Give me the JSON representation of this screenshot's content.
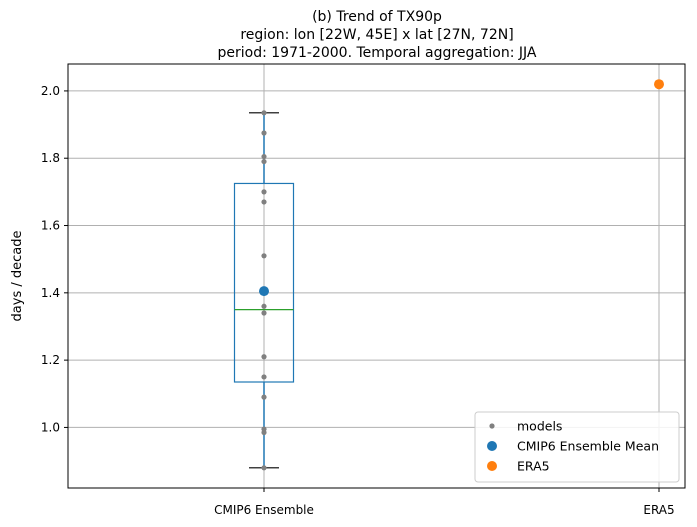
{
  "chart_data": {
    "type": "box",
    "title_lines": [
      "(b) Trend of TX90p",
      "region: lon [22W, 45E] x lat [27N, 72N]",
      "period: 1971-2000. Temporal aggregation: JJA"
    ],
    "xlabel": "",
    "ylabel": "days / decade",
    "categories": [
      "CMIP6 Ensemble",
      "ERA5"
    ],
    "ylim": [
      0.82,
      2.08
    ],
    "yticks": [
      1.0,
      1.2,
      1.4,
      1.6,
      1.8,
      2.0
    ],
    "ytick_labels": [
      "1.0",
      "1.2",
      "1.4",
      "1.6",
      "1.8",
      "2.0"
    ],
    "grid": true,
    "box": {
      "category": "CMIP6 Ensemble",
      "whisker_low": 0.88,
      "q1": 1.135,
      "median": 1.35,
      "q3": 1.725,
      "whisker_high": 1.935,
      "box_color": "#1f77b4",
      "median_color": "#2ca02c",
      "whisker_cap_color": "#000000"
    },
    "series": [
      {
        "name": "models",
        "category": "CMIP6 Ensemble",
        "color": "#808080",
        "marker": "small-dot",
        "values": [
          0.88,
          0.985,
          0.995,
          1.09,
          1.15,
          1.21,
          1.34,
          1.36,
          1.51,
          1.67,
          1.7,
          1.79,
          1.805,
          1.875,
          1.935
        ]
      },
      {
        "name": "CMIP6 Ensemble Mean",
        "category": "CMIP6 Ensemble",
        "color": "#1f77b4",
        "marker": "dot",
        "values": [
          1.405
        ]
      },
      {
        "name": "ERA5",
        "category": "ERA5",
        "color": "#ff7f0e",
        "marker": "dot",
        "values": [
          2.02
        ]
      }
    ],
    "legend": {
      "placement": "lower-right"
    }
  }
}
